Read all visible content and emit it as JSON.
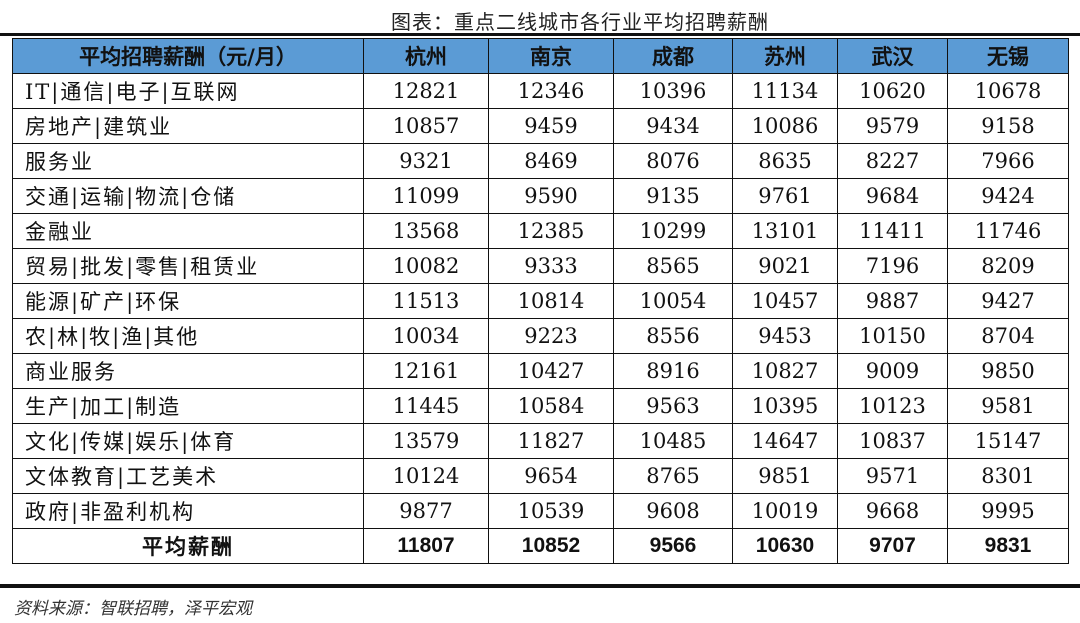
{
  "title": "图表：重点二线城市各行业平均招聘薪酬",
  "table": {
    "header": [
      "平均招聘薪酬（元/月）",
      "杭州",
      "南京",
      "成都",
      "苏州",
      "武汉",
      "无锡"
    ],
    "rows": [
      {
        "industry": "IT|通信|电子|互联网",
        "values": [
          "12821",
          "12346",
          "10396",
          "11134",
          "10620",
          "10678"
        ]
      },
      {
        "industry": "房地产|建筑业",
        "values": [
          "10857",
          "9459",
          "9434",
          "10086",
          "9579",
          "9158"
        ]
      },
      {
        "industry": "服务业",
        "values": [
          "9321",
          "8469",
          "8076",
          "8635",
          "8227",
          "7966"
        ]
      },
      {
        "industry": "交通|运输|物流|仓储",
        "values": [
          "11099",
          "9590",
          "9135",
          "9761",
          "9684",
          "9424"
        ]
      },
      {
        "industry": "金融业",
        "values": [
          "13568",
          "12385",
          "10299",
          "13101",
          "11411",
          "11746"
        ]
      },
      {
        "industry": "贸易|批发|零售|租赁业",
        "values": [
          "10082",
          "9333",
          "8565",
          "9021",
          "7196",
          "8209"
        ]
      },
      {
        "industry": "能源|矿产|环保",
        "values": [
          "11513",
          "10814",
          "10054",
          "10457",
          "9887",
          "9427"
        ]
      },
      {
        "industry": "农|林|牧|渔|其他",
        "values": [
          "10034",
          "9223",
          "8556",
          "9453",
          "10150",
          "8704"
        ]
      },
      {
        "industry": "商业服务",
        "values": [
          "12161",
          "10427",
          "8916",
          "10827",
          "9009",
          "9850"
        ]
      },
      {
        "industry": "生产|加工|制造",
        "values": [
          "11445",
          "10584",
          "9563",
          "10395",
          "10123",
          "9581"
        ]
      },
      {
        "industry": "文化|传媒|娱乐|体育",
        "values": [
          "13579",
          "11827",
          "10485",
          "14647",
          "10837",
          "15147"
        ]
      },
      {
        "industry": "文体教育|工艺美术",
        "values": [
          "10124",
          "9654",
          "8765",
          "9851",
          "9571",
          "8301"
        ]
      },
      {
        "industry": "政府|非盈利机构",
        "values": [
          "9877",
          "10539",
          "9608",
          "10019",
          "9668",
          "9995"
        ]
      }
    ],
    "average": {
      "industry": "平均薪酬",
      "values": [
        "11807",
        "10852",
        "9566",
        "10630",
        "9707",
        "9831"
      ]
    }
  },
  "source": "资料来源：智联招聘，泽平宏观",
  "colors": {
    "header_bg": "#5b9bd5"
  }
}
